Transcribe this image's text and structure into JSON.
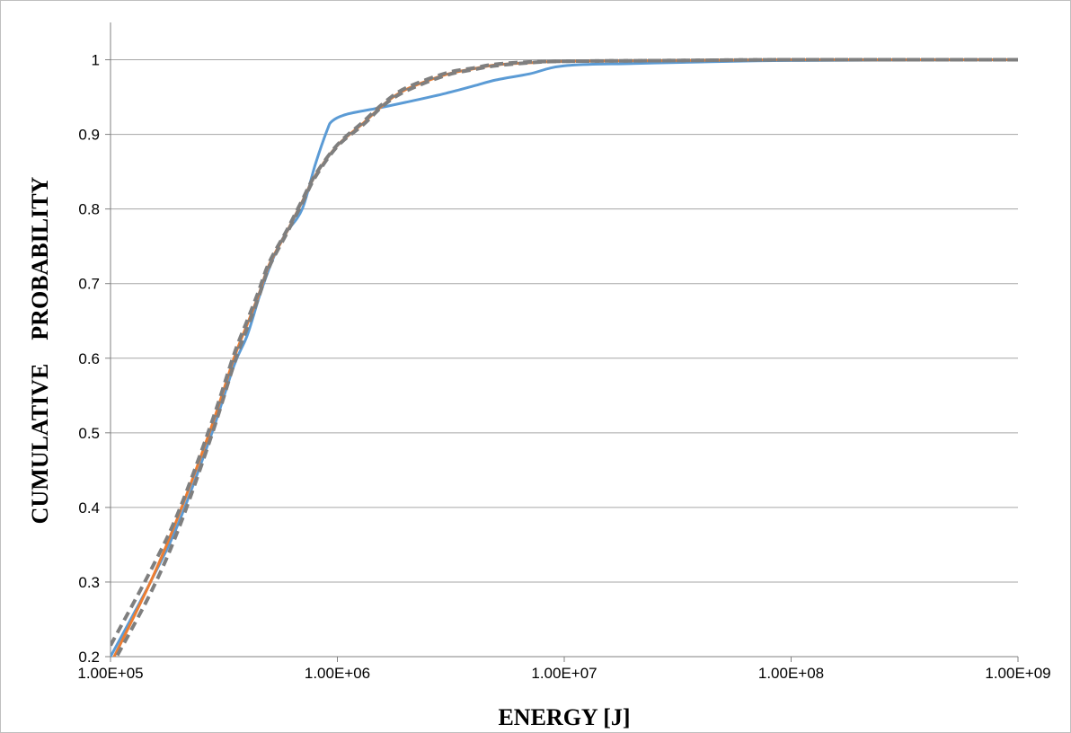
{
  "chart_data": {
    "type": "line",
    "xscale": "log",
    "xlabel": "ENERGY [J]",
    "ylabel": "CUMULATIVE    PROBABILITY",
    "xlim": [
      100000,
      1000000000
    ],
    "ylim": [
      0.2,
      1.05
    ],
    "grid": "horizontal",
    "legend": "none",
    "x_ticks": [
      {
        "value": 100000,
        "label": "1.00E+05"
      },
      {
        "value": 1000000,
        "label": "1.00E+06"
      },
      {
        "value": 10000000,
        "label": "1.00E+07"
      },
      {
        "value": 100000000,
        "label": "1.00E+08"
      },
      {
        "value": 1000000000,
        "label": "1.00E+09"
      }
    ],
    "y_ticks": [
      {
        "value": 0.2,
        "label": "0.2"
      },
      {
        "value": 0.3,
        "label": "0.3"
      },
      {
        "value": 0.4,
        "label": "0.4"
      },
      {
        "value": 0.5,
        "label": "0.5"
      },
      {
        "value": 0.6,
        "label": "0.6"
      },
      {
        "value": 0.7,
        "label": "0.7"
      },
      {
        "value": 0.8,
        "label": "0.8"
      },
      {
        "value": 0.9,
        "label": "0.9"
      },
      {
        "value": 1,
        "label": "1"
      }
    ],
    "series": [
      {
        "color": "#5b9bd5",
        "style": "solid",
        "x": [
          100000,
          150000,
          200000,
          280000,
          350000,
          400000,
          450000,
          500000,
          550000,
          600000,
          700000,
          800000,
          900000,
          950000,
          1100000,
          1500000,
          2000000,
          3000000,
          4000000,
          5000000,
          7000000,
          10000000,
          20000000,
          40000000,
          100000000,
          1000000000
        ],
        "y": [
          0.2,
          0.3,
          0.38,
          0.5,
          0.59,
          0.63,
          0.68,
          0.72,
          0.75,
          0.77,
          0.8,
          0.86,
          0.905,
          0.918,
          0.927,
          0.935,
          0.943,
          0.955,
          0.965,
          0.973,
          0.981,
          0.992,
          0.995,
          0.997,
          0.999,
          1.0
        ]
      },
      {
        "color": "#ed7d31",
        "style": "solid",
        "x": [
          100000,
          150000,
          200000,
          280000,
          350000,
          400000,
          450000,
          500000,
          600000,
          700000,
          800000,
          1000000,
          1300000,
          1600000,
          2000000,
          3000000,
          4000000,
          5000000,
          7000000,
          10000000,
          30000000,
          100000000,
          1000000000
        ],
        "y": [
          0.19,
          0.3,
          0.39,
          0.51,
          0.6,
          0.645,
          0.685,
          0.725,
          0.77,
          0.81,
          0.845,
          0.885,
          0.915,
          0.94,
          0.96,
          0.98,
          0.988,
          0.993,
          0.996,
          0.998,
          0.999,
          1.0,
          1.0
        ]
      },
      {
        "color": "#7f7f7f",
        "style": "dash",
        "x": [
          100000,
          150000,
          200000,
          280000,
          350000,
          400000,
          450000,
          500000,
          600000,
          700000,
          800000,
          1000000,
          1300000,
          1600000,
          2000000,
          3000000,
          4000000,
          5000000,
          7000000,
          10000000,
          30000000,
          100000000,
          1000000000
        ],
        "y": [
          0.215,
          0.315,
          0.395,
          0.515,
          0.605,
          0.65,
          0.69,
          0.728,
          0.772,
          0.812,
          0.846,
          0.886,
          0.917,
          0.942,
          0.962,
          0.982,
          0.989,
          0.994,
          0.997,
          0.998,
          0.999,
          1.0,
          1.0
        ]
      },
      {
        "color": "#7f7f7f",
        "style": "dash",
        "x": [
          100000,
          150000,
          200000,
          280000,
          350000,
          400000,
          450000,
          500000,
          600000,
          700000,
          800000,
          1000000,
          1300000,
          1600000,
          2000000,
          3000000,
          4000000,
          5000000,
          7000000,
          10000000,
          30000000,
          100000000,
          1000000000
        ],
        "y": [
          0.185,
          0.285,
          0.372,
          0.498,
          0.592,
          0.64,
          0.682,
          0.722,
          0.768,
          0.808,
          0.843,
          0.884,
          0.913,
          0.939,
          0.958,
          0.979,
          0.987,
          0.992,
          0.996,
          0.998,
          0.999,
          1.0,
          1.0
        ]
      }
    ]
  }
}
